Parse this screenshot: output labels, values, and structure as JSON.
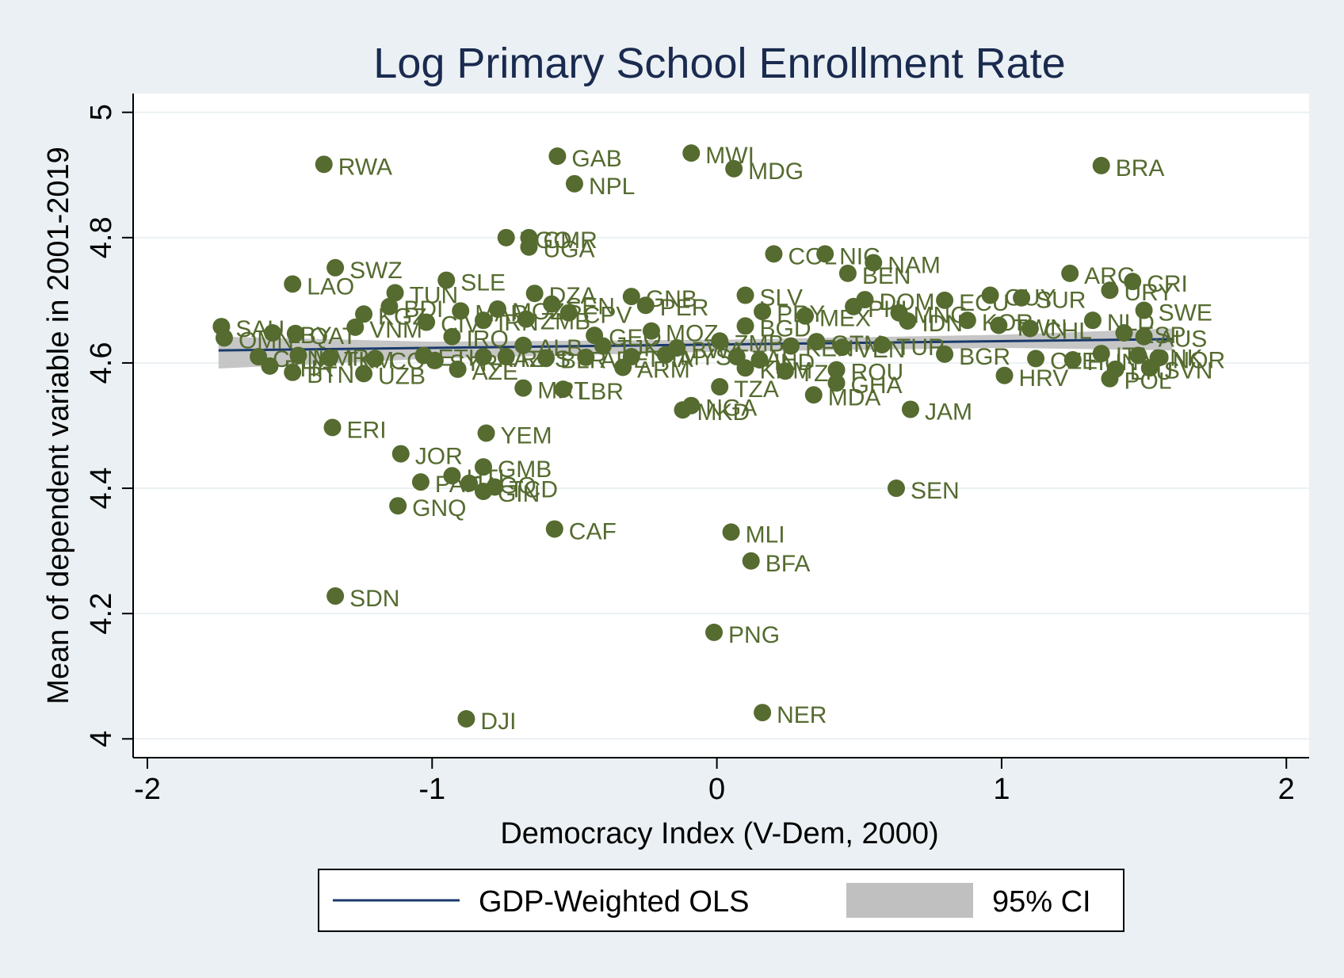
{
  "colors": {
    "background": "#eaf0f3",
    "plot_background": "#ffffff",
    "grid": "#eaf0f3",
    "marker": "#556b2f",
    "fit_line": "#1a3a6b",
    "ci_band": "#c0c0c0",
    "title": "#1a2a4f"
  },
  "chart_data": {
    "type": "scatter",
    "title": "Log Primary School Enrollment Rate",
    "xlabel": "Democracy Index (V-Dem, 2000)",
    "ylabel": "Mean of dependent variable in 2001-2019",
    "xlim": [
      -2.05,
      2.08
    ],
    "ylim": [
      3.97,
      5.03
    ],
    "xticks": [
      -2,
      -1,
      0,
      1,
      2
    ],
    "yticks": [
      4,
      4.2,
      4.4,
      4.6,
      4.8,
      5
    ],
    "grid": true,
    "legend": {
      "placement": "bottom",
      "entries": [
        {
          "label": "GDP-Weighted OLS",
          "kind": "line"
        },
        {
          "label": "95% CI",
          "kind": "band"
        }
      ]
    },
    "fit_line": {
      "x": [
        -1.75,
        1.6
      ],
      "y": [
        4.62,
        4.638
      ]
    },
    "ci_band": {
      "x": [
        -1.75,
        -1.0,
        0.0,
        1.0,
        1.6
      ],
      "upper": [
        4.642,
        4.634,
        4.637,
        4.645,
        4.655
      ],
      "lower": [
        4.591,
        4.607,
        4.618,
        4.624,
        4.62
      ]
    },
    "points": [
      {
        "x": -1.38,
        "y": 4.917,
        "label": "RWA"
      },
      {
        "x": -0.56,
        "y": 4.93,
        "label": "GAB"
      },
      {
        "x": -0.5,
        "y": 4.886,
        "label": "NPL"
      },
      {
        "x": -0.09,
        "y": 4.935,
        "label": "MWI"
      },
      {
        "x": 0.06,
        "y": 4.91,
        "label": "MDG"
      },
      {
        "x": 1.35,
        "y": 4.915,
        "label": "BRA"
      },
      {
        "x": -0.74,
        "y": 4.8,
        "label": "TGO"
      },
      {
        "x": -0.66,
        "y": 4.8,
        "label": "CMR"
      },
      {
        "x": -0.66,
        "y": 4.785,
        "label": "UGA"
      },
      {
        "x": 0.2,
        "y": 4.774,
        "label": "COL"
      },
      {
        "x": 0.38,
        "y": 4.774,
        "label": "NIC"
      },
      {
        "x": 0.55,
        "y": 4.76,
        "label": "NAM"
      },
      {
        "x": 0.46,
        "y": 4.743,
        "label": "BEN"
      },
      {
        "x": -1.34,
        "y": 4.752,
        "label": "SWZ"
      },
      {
        "x": -1.49,
        "y": 4.726,
        "label": "LAO"
      },
      {
        "x": -0.95,
        "y": 4.732,
        "label": "SLE"
      },
      {
        "x": -1.13,
        "y": 4.712,
        "label": "TUN"
      },
      {
        "x": -0.64,
        "y": 4.711,
        "label": "DZA"
      },
      {
        "x": -0.3,
        "y": 4.706,
        "label": "GNB"
      },
      {
        "x": -0.25,
        "y": 4.692,
        "label": "PER"
      },
      {
        "x": 0.1,
        "y": 4.708,
        "label": "SLV"
      },
      {
        "x": 1.24,
        "y": 4.743,
        "label": "ARG"
      },
      {
        "x": 1.46,
        "y": 4.73,
        "label": "CRI"
      },
      {
        "x": 1.38,
        "y": 4.716,
        "label": "URY"
      },
      {
        "x": 1.07,
        "y": 4.704,
        "label": "SUR"
      },
      {
        "x": 0.96,
        "y": 4.708,
        "label": "GUY"
      },
      {
        "x": 0.52,
        "y": 4.701,
        "label": "DOM"
      },
      {
        "x": 0.8,
        "y": 4.7,
        "label": "ECU"
      },
      {
        "x": 1.5,
        "y": 4.684,
        "label": "SWE"
      },
      {
        "x": 1.32,
        "y": 4.668,
        "label": "NLD"
      },
      {
        "x": -1.15,
        "y": 4.69,
        "label": "BDI"
      },
      {
        "x": -0.9,
        "y": 4.683,
        "label": "MAR"
      },
      {
        "x": -0.77,
        "y": 4.686,
        "label": "MOZ"
      },
      {
        "x": -0.58,
        "y": 4.694,
        "label": "SEN"
      },
      {
        "x": -0.52,
        "y": 4.68,
        "label": "CPV"
      },
      {
        "x": -1.24,
        "y": 4.678,
        "label": "KGZ"
      },
      {
        "x": -1.02,
        "y": 4.665,
        "label": "CIV"
      },
      {
        "x": -0.82,
        "y": 4.668,
        "label": "IRN"
      },
      {
        "x": -0.67,
        "y": 4.67,
        "label": "ZMB"
      },
      {
        "x": -1.27,
        "y": 4.657,
        "label": "VNM"
      },
      {
        "x": -1.74,
        "y": 4.658,
        "label": "SAU"
      },
      {
        "x": -1.73,
        "y": 4.64,
        "label": "OMN"
      },
      {
        "x": -1.56,
        "y": 4.648,
        "label": "LBY"
      },
      {
        "x": -1.48,
        "y": 4.647,
        "label": "QAT"
      },
      {
        "x": -0.93,
        "y": 4.642,
        "label": "IRQ"
      },
      {
        "x": -0.43,
        "y": 4.644,
        "label": "GEO"
      },
      {
        "x": -0.23,
        "y": 4.651,
        "label": "MOZ"
      },
      {
        "x": 0.16,
        "y": 4.682,
        "label": "PRY"
      },
      {
        "x": 0.31,
        "y": 4.675,
        "label": "MEX"
      },
      {
        "x": 0.1,
        "y": 4.659,
        "label": "BGD"
      },
      {
        "x": 0.48,
        "y": 4.69,
        "label": "PHL"
      },
      {
        "x": 0.64,
        "y": 4.68,
        "label": "MNG"
      },
      {
        "x": 0.67,
        "y": 4.667,
        "label": "IDN"
      },
      {
        "x": 0.88,
        "y": 4.668,
        "label": "KOR"
      },
      {
        "x": 0.99,
        "y": 4.66,
        "label": "TWN"
      },
      {
        "x": 1.1,
        "y": 4.655,
        "label": "CHL"
      },
      {
        "x": 1.43,
        "y": 4.648,
        "label": "ESP"
      },
      {
        "x": 1.5,
        "y": 4.642,
        "label": "AUS"
      },
      {
        "x": -0.68,
        "y": 4.628,
        "label": "ALB"
      },
      {
        "x": -0.4,
        "y": 4.627,
        "label": "TJK"
      },
      {
        "x": -0.14,
        "y": 4.624,
        "label": "BWA"
      },
      {
        "x": 0.01,
        "y": 4.635,
        "label": "ZMB"
      },
      {
        "x": 0.26,
        "y": 4.627,
        "label": "KEN"
      },
      {
        "x": 0.35,
        "y": 4.634,
        "label": "GTM"
      },
      {
        "x": 0.44,
        "y": 4.625,
        "label": "VEN"
      },
      {
        "x": 0.58,
        "y": 4.629,
        "label": "TUR"
      },
      {
        "x": -1.61,
        "y": 4.61,
        "label": "CHN"
      },
      {
        "x": -1.47,
        "y": 4.612,
        "label": "MMR"
      },
      {
        "x": -1.36,
        "y": 4.608,
        "label": "TKM"
      },
      {
        "x": -1.2,
        "y": 4.607,
        "label": "COG"
      },
      {
        "x": -1.03,
        "y": 4.612,
        "label": "ETH"
      },
      {
        "x": -0.99,
        "y": 4.604,
        "label": "SYR"
      },
      {
        "x": -0.82,
        "y": 4.61,
        "label": "KAZ"
      },
      {
        "x": -0.74,
        "y": 4.61,
        "label": "RUS"
      },
      {
        "x": -0.6,
        "y": 4.608,
        "label": "BLR"
      },
      {
        "x": -0.46,
        "y": 4.609,
        "label": "ARE"
      },
      {
        "x": -0.3,
        "y": 4.61,
        "label": "THA"
      },
      {
        "x": -0.18,
        "y": 4.613,
        "label": "MYS"
      },
      {
        "x": 0.07,
        "y": 4.61,
        "label": "ZAF"
      },
      {
        "x": 0.15,
        "y": 4.605,
        "label": "IND"
      },
      {
        "x": 0.8,
        "y": 4.614,
        "label": "BGR"
      },
      {
        "x": 1.12,
        "y": 4.607,
        "label": "CZE"
      },
      {
        "x": 1.25,
        "y": 4.605,
        "label": "HUN"
      },
      {
        "x": 1.35,
        "y": 4.615,
        "label": "ITA"
      },
      {
        "x": 1.48,
        "y": 4.612,
        "label": "DNK"
      },
      {
        "x": 1.55,
        "y": 4.608,
        "label": "NOR"
      },
      {
        "x": -1.57,
        "y": 4.595,
        "label": "BHR"
      },
      {
        "x": -1.49,
        "y": 4.585,
        "label": "BTN"
      },
      {
        "x": -1.24,
        "y": 4.583,
        "label": "UZB"
      },
      {
        "x": -0.91,
        "y": 4.59,
        "label": "AZE"
      },
      {
        "x": -0.33,
        "y": 4.593,
        "label": "ARM"
      },
      {
        "x": 0.1,
        "y": 4.592,
        "label": "KHM"
      },
      {
        "x": 0.24,
        "y": 4.587,
        "label": "TZA"
      },
      {
        "x": 0.42,
        "y": 4.589,
        "label": "ROU"
      },
      {
        "x": 1.01,
        "y": 4.58,
        "label": "HRV"
      },
      {
        "x": 1.4,
        "y": 4.59,
        "label": "LTU"
      },
      {
        "x": 1.52,
        "y": 4.592,
        "label": "SVN"
      },
      {
        "x": 1.38,
        "y": 4.575,
        "label": "POL"
      },
      {
        "x": -0.68,
        "y": 4.56,
        "label": "MRT"
      },
      {
        "x": -0.54,
        "y": 4.558,
        "label": "LBR"
      },
      {
        "x": 0.01,
        "y": 4.562,
        "label": "TZA"
      },
      {
        "x": 0.42,
        "y": 4.568,
        "label": "GHA"
      },
      {
        "x": 0.34,
        "y": 4.549,
        "label": "MDA"
      },
      {
        "x": -0.12,
        "y": 4.525,
        "label": "MKD"
      },
      {
        "x": -0.09,
        "y": 4.532,
        "label": "NGA"
      },
      {
        "x": 0.68,
        "y": 4.526,
        "label": "JAM"
      },
      {
        "x": -1.35,
        "y": 4.497,
        "label": "ERI"
      },
      {
        "x": -0.81,
        "y": 4.488,
        "label": "YEM"
      },
      {
        "x": -1.11,
        "y": 4.455,
        "label": "JOR"
      },
      {
        "x": -0.82,
        "y": 4.434,
        "label": "GMB"
      },
      {
        "x": -1.04,
        "y": 4.41,
        "label": "PAK"
      },
      {
        "x": -0.93,
        "y": 4.42,
        "label": "HTI"
      },
      {
        "x": -0.87,
        "y": 4.408,
        "label": "AGO"
      },
      {
        "x": -0.78,
        "y": 4.402,
        "label": "TCD"
      },
      {
        "x": -0.82,
        "y": 4.395,
        "label": "GIN"
      },
      {
        "x": 0.63,
        "y": 4.4,
        "label": "SEN"
      },
      {
        "x": -1.12,
        "y": 4.372,
        "label": "GNQ"
      },
      {
        "x": -0.57,
        "y": 4.335,
        "label": "CAF"
      },
      {
        "x": 0.05,
        "y": 4.33,
        "label": "MLI"
      },
      {
        "x": 0.12,
        "y": 4.284,
        "label": "BFA"
      },
      {
        "x": -1.34,
        "y": 4.228,
        "label": "SDN"
      },
      {
        "x": -0.01,
        "y": 4.17,
        "label": "PNG"
      },
      {
        "x": 0.16,
        "y": 4.042,
        "label": "NER"
      },
      {
        "x": -0.88,
        "y": 4.032,
        "label": "DJI"
      }
    ]
  }
}
